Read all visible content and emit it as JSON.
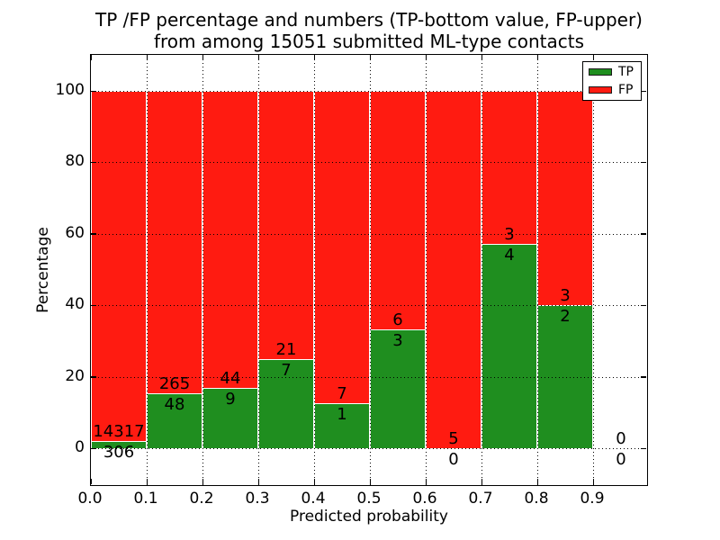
{
  "title": {
    "line1": "TP /FP percentage and numbers (TP-bottom value, FP-upper)",
    "line2": "from among 15051 submitted ML-type contacts"
  },
  "axes": {
    "xlabel": "Predicted probability",
    "ylabel": "Percentage",
    "xtick_labels": [
      "0.0",
      "0.1",
      "0.2",
      "0.3",
      "0.4",
      "0.5",
      "0.6",
      "0.7",
      "0.8",
      "0.9"
    ],
    "xtick_values": [
      0.0,
      0.1,
      0.2,
      0.3,
      0.4,
      0.5,
      0.6,
      0.7,
      0.8,
      0.9
    ],
    "ytick_labels": [
      "0",
      "20",
      "40",
      "60",
      "80",
      "100"
    ],
    "ytick_values": [
      0,
      20,
      40,
      60,
      80,
      100
    ],
    "xlim": [
      0.0,
      1.0
    ],
    "ylim": [
      -11,
      110
    ],
    "grid": "dotted black, drawn above bars"
  },
  "legend": {
    "position": "upper right",
    "entries": [
      {
        "label": "TP",
        "color": "#1f8e1f"
      },
      {
        "label": "FP",
        "color": "#ff1b11"
      }
    ]
  },
  "colors": {
    "tp_green": "#1f8e1f",
    "fp_red": "#ff1b11",
    "bar_edge": "#ffffff",
    "background": "#ffffff",
    "text": "#000000"
  },
  "chart_data": {
    "type": "bar",
    "stacked": true,
    "normalized_to": 100,
    "title": "TP /FP percentage and numbers (TP-bottom value, FP-upper) from among 15051 submitted ML-type contacts",
    "xlabel": "Predicted probability",
    "ylabel": "Percentage",
    "total_contacts": 15051,
    "bin_edges": [
      0.0,
      0.1,
      0.2,
      0.3,
      0.4,
      0.5,
      0.6,
      0.7,
      0.8,
      0.9,
      1.0
    ],
    "categories": [
      "0.0-0.1",
      "0.1-0.2",
      "0.2-0.3",
      "0.3-0.4",
      "0.4-0.5",
      "0.5-0.6",
      "0.6-0.7",
      "0.7-0.8",
      "0.8-0.9",
      "0.9-1.0"
    ],
    "series": [
      {
        "name": "TP",
        "counts": [
          306,
          48,
          9,
          7,
          1,
          3,
          0,
          4,
          2,
          0
        ],
        "percent": [
          2.09,
          15.34,
          16.98,
          25.0,
          12.5,
          33.33,
          0.0,
          57.14,
          40.0,
          0.0
        ]
      },
      {
        "name": "FP",
        "counts": [
          14317,
          265,
          44,
          21,
          7,
          6,
          5,
          3,
          3,
          0
        ],
        "percent": [
          97.91,
          84.66,
          83.02,
          75.0,
          87.5,
          66.67,
          100.0,
          42.86,
          60.0,
          0.0
        ]
      }
    ],
    "annotation_note": "FP count printed just above the TP/FP boundary, TP count just below it; bins with zero total show 0 / 0 and no bar"
  }
}
